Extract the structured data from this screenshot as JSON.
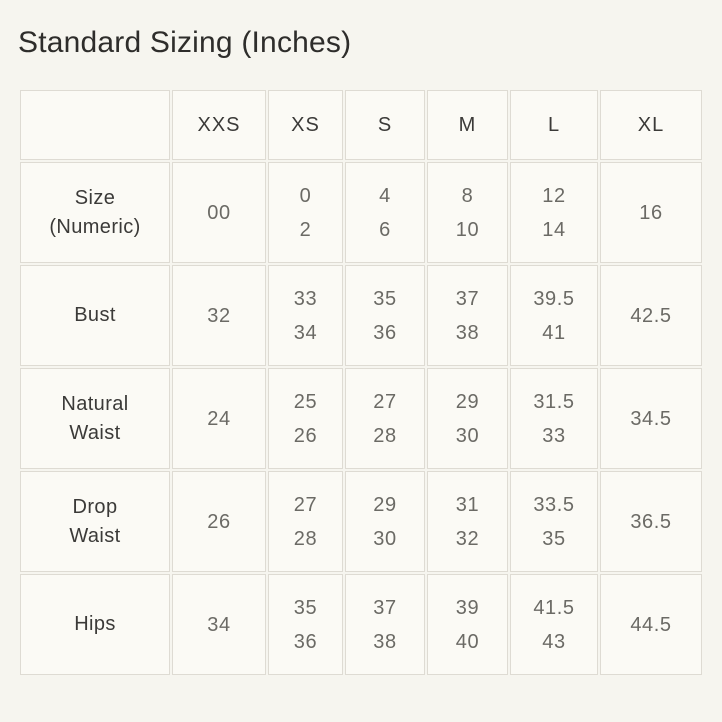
{
  "page": {
    "title": "Standard Sizing (Inches)"
  },
  "sizing_table": {
    "corner_header": "",
    "column_headers": [
      "XXS",
      "XS",
      "S",
      "M",
      "L",
      "XL"
    ],
    "rows": [
      {
        "label": "Size (Numeric)",
        "label_lines": [
          "Size",
          "(Numeric)"
        ],
        "cells": [
          [
            "00"
          ],
          [
            "0",
            "2"
          ],
          [
            "4",
            "6"
          ],
          [
            "8",
            "10"
          ],
          [
            "12",
            "14"
          ],
          [
            "16"
          ]
        ]
      },
      {
        "label": "Bust",
        "label_lines": [
          "Bust"
        ],
        "cells": [
          [
            "32"
          ],
          [
            "33",
            "34"
          ],
          [
            "35",
            "36"
          ],
          [
            "37",
            "38"
          ],
          [
            "39.5",
            "41"
          ],
          [
            "42.5"
          ]
        ]
      },
      {
        "label": "Natural Waist",
        "label_lines": [
          "Natural",
          "Waist"
        ],
        "cells": [
          [
            "24"
          ],
          [
            "25",
            "26"
          ],
          [
            "27",
            "28"
          ],
          [
            "29",
            "30"
          ],
          [
            "31.5",
            "33"
          ],
          [
            "34.5"
          ]
        ]
      },
      {
        "label": "Drop Waist",
        "label_lines": [
          "Drop",
          "Waist"
        ],
        "cells": [
          [
            "26"
          ],
          [
            "27",
            "28"
          ],
          [
            "29",
            "30"
          ],
          [
            "31",
            "32"
          ],
          [
            "33.5",
            "35"
          ],
          [
            "36.5"
          ]
        ]
      },
      {
        "label": "Hips",
        "label_lines": [
          "Hips"
        ],
        "cells": [
          [
            "34"
          ],
          [
            "35",
            "36"
          ],
          [
            "37",
            "38"
          ],
          [
            "39",
            "40"
          ],
          [
            "41.5",
            "43"
          ],
          [
            "44.5"
          ]
        ]
      }
    ]
  },
  "colors": {
    "page_background": "#f6f5ef",
    "cell_background": "#fbfaf5",
    "border": "#dedbd3",
    "title_text": "#2e2d2b",
    "header_text": "#3b3a38",
    "value_text": "#6b6a65"
  }
}
